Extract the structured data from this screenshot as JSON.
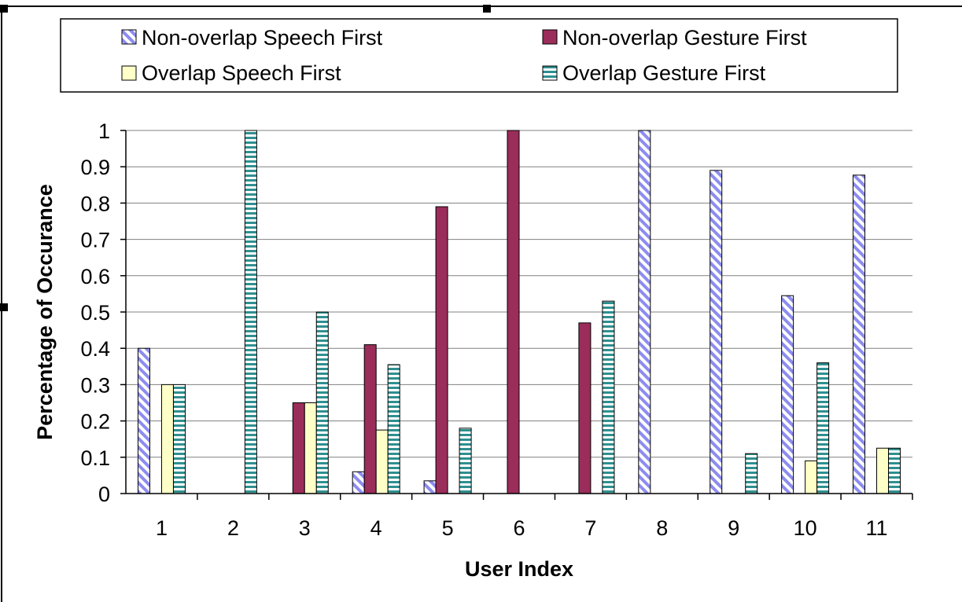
{
  "chart_data": {
    "type": "bar",
    "title": "",
    "xlabel": "User Index",
    "ylabel": "Percentage of Occurance",
    "ylim": [
      0,
      1
    ],
    "yticks": [
      "0",
      "0.1",
      "0.2",
      "0.3",
      "0.4",
      "0.5",
      "0.6",
      "0.7",
      "0.8",
      "0.9",
      "1"
    ],
    "categories": [
      "1",
      "2",
      "3",
      "4",
      "5",
      "6",
      "7",
      "8",
      "9",
      "10",
      "11"
    ],
    "grid": true,
    "legend_position": "top",
    "series": [
      {
        "name": "Non-overlap Speech First",
        "pattern": "diagonal-stripes",
        "color": "#8c8cf0",
        "values": [
          0.4,
          0,
          0,
          0.06,
          0.035,
          0,
          0,
          1.0,
          0.89,
          0.545,
          0.877
        ]
      },
      {
        "name": "Non-overlap Gesture First",
        "pattern": "solid",
        "color": "#9b2d5a",
        "values": [
          0,
          0,
          0.25,
          0.41,
          0.79,
          1.0,
          0.47,
          0,
          0,
          0,
          0
        ]
      },
      {
        "name": "Overlap Speech First",
        "pattern": "solid",
        "color": "#ffffc8",
        "values": [
          0.3,
          0,
          0.25,
          0.175,
          0,
          0,
          0,
          0,
          0,
          0.09,
          0.125
        ]
      },
      {
        "name": "Overlap Gesture First",
        "pattern": "horizontal-stripes",
        "color": "#7fd0d0",
        "values": [
          0.3,
          1.0,
          0.5,
          0.355,
          0.18,
          0,
          0.53,
          0,
          0.11,
          0.36,
          0.125
        ]
      }
    ]
  }
}
